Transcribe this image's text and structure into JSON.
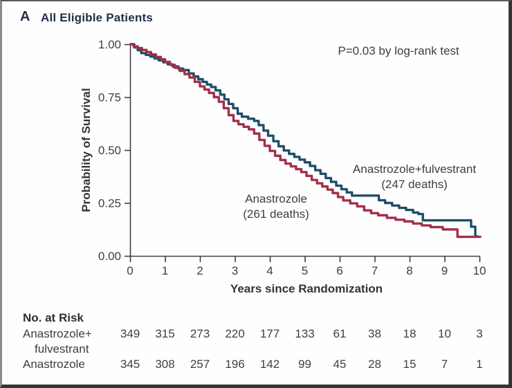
{
  "figure": {
    "panel_label": "A",
    "title": "All Eligible Patients",
    "p_value_note": "P=0.03 by log-rank test"
  },
  "chart_data": {
    "type": "line",
    "subtype": "kaplan-meier-step",
    "title": "All Eligible Patients",
    "xlabel": "Years since Randomization",
    "ylabel": "Probability of Survival",
    "xlim": [
      0,
      10
    ],
    "ylim": [
      0.0,
      1.0
    ],
    "x_ticks": [
      0,
      1,
      2,
      3,
      4,
      5,
      6,
      7,
      8,
      9,
      10
    ],
    "y_tick_values": [
      1.0,
      0.75,
      0.5,
      0.25,
      0.0
    ],
    "y_tick_labels": [
      "1.00",
      "0.75",
      "0.50",
      "0.25",
      "0.00"
    ],
    "grid": false,
    "legend_position": "inline-annotations",
    "annotation": "P=0.03 by log-rank test",
    "series": [
      {
        "name": "Anastrozole+fulvestrant",
        "deaths": 247,
        "label_lines": [
          "Anastrozole+fulvestrant",
          "(247 deaths)"
        ],
        "color": "#1d4f67",
        "points": [
          [
            0,
            1.0
          ],
          [
            0.12,
            0.985
          ],
          [
            0.22,
            0.972
          ],
          [
            0.32,
            0.958
          ],
          [
            0.45,
            0.95
          ],
          [
            0.58,
            0.942
          ],
          [
            0.7,
            0.933
          ],
          [
            0.82,
            0.924
          ],
          [
            0.95,
            0.915
          ],
          [
            1.08,
            0.905
          ],
          [
            1.22,
            0.895
          ],
          [
            1.38,
            0.885
          ],
          [
            1.52,
            0.878
          ],
          [
            1.68,
            0.862
          ],
          [
            1.82,
            0.848
          ],
          [
            1.95,
            0.835
          ],
          [
            2.08,
            0.822
          ],
          [
            2.2,
            0.81
          ],
          [
            2.32,
            0.798
          ],
          [
            2.45,
            0.782
          ],
          [
            2.58,
            0.762
          ],
          [
            2.7,
            0.74
          ],
          [
            2.82,
            0.718
          ],
          [
            2.95,
            0.698
          ],
          [
            3.08,
            0.672
          ],
          [
            3.2,
            0.658
          ],
          [
            3.38,
            0.648
          ],
          [
            3.55,
            0.638
          ],
          [
            3.68,
            0.618
          ],
          [
            3.82,
            0.592
          ],
          [
            3.95,
            0.568
          ],
          [
            4.1,
            0.542
          ],
          [
            4.25,
            0.518
          ],
          [
            4.4,
            0.498
          ],
          [
            4.55,
            0.482
          ],
          [
            4.7,
            0.468
          ],
          [
            4.85,
            0.455
          ],
          [
            5.0,
            0.442
          ],
          [
            5.15,
            0.425
          ],
          [
            5.3,
            0.405
          ],
          [
            5.45,
            0.388
          ],
          [
            5.6,
            0.368
          ],
          [
            5.75,
            0.35
          ],
          [
            5.9,
            0.332
          ],
          [
            6.05,
            0.315
          ],
          [
            6.2,
            0.3
          ],
          [
            6.35,
            0.285
          ],
          [
            7.12,
            0.263
          ],
          [
            7.3,
            0.25
          ],
          [
            7.5,
            0.238
          ],
          [
            7.7,
            0.227
          ],
          [
            7.9,
            0.217
          ],
          [
            8.1,
            0.205
          ],
          [
            8.25,
            0.198
          ],
          [
            8.38,
            0.168
          ],
          [
            9.76,
            0.138
          ],
          [
            9.88,
            0.092
          ],
          [
            9.97,
            0.092
          ]
        ]
      },
      {
        "name": "Anastrozole",
        "deaths": 261,
        "label_lines": [
          "Anastrozole",
          "(261 deaths)"
        ],
        "color": "#a23049",
        "points": [
          [
            0,
            1.0
          ],
          [
            0.1,
            0.99
          ],
          [
            0.22,
            0.982
          ],
          [
            0.34,
            0.973
          ],
          [
            0.47,
            0.963
          ],
          [
            0.6,
            0.952
          ],
          [
            0.74,
            0.94
          ],
          [
            0.88,
            0.929
          ],
          [
            1.0,
            0.917
          ],
          [
            1.14,
            0.903
          ],
          [
            1.28,
            0.889
          ],
          [
            1.42,
            0.874
          ],
          [
            1.56,
            0.859
          ],
          [
            1.7,
            0.843
          ],
          [
            1.85,
            0.822
          ],
          [
            2.0,
            0.801
          ],
          [
            2.13,
            0.786
          ],
          [
            2.26,
            0.77
          ],
          [
            2.4,
            0.75
          ],
          [
            2.54,
            0.728
          ],
          [
            2.68,
            0.698
          ],
          [
            2.82,
            0.665
          ],
          [
            2.96,
            0.638
          ],
          [
            3.1,
            0.622
          ],
          [
            3.25,
            0.61
          ],
          [
            3.4,
            0.598
          ],
          [
            3.55,
            0.578
          ],
          [
            3.7,
            0.548
          ],
          [
            3.85,
            0.52
          ],
          [
            4.0,
            0.496
          ],
          [
            4.15,
            0.473
          ],
          [
            4.3,
            0.453
          ],
          [
            4.45,
            0.436
          ],
          [
            4.6,
            0.423
          ],
          [
            4.75,
            0.41
          ],
          [
            4.9,
            0.396
          ],
          [
            5.05,
            0.378
          ],
          [
            5.2,
            0.359
          ],
          [
            5.35,
            0.343
          ],
          [
            5.5,
            0.328
          ],
          [
            5.65,
            0.313
          ],
          [
            5.8,
            0.297
          ],
          [
            5.95,
            0.278
          ],
          [
            6.1,
            0.262
          ],
          [
            6.3,
            0.248
          ],
          [
            6.5,
            0.234
          ],
          [
            6.7,
            0.215
          ],
          [
            6.9,
            0.202
          ],
          [
            7.1,
            0.192
          ],
          [
            7.35,
            0.18
          ],
          [
            7.6,
            0.171
          ],
          [
            7.85,
            0.163
          ],
          [
            8.1,
            0.153
          ],
          [
            8.35,
            0.144
          ],
          [
            8.6,
            0.136
          ],
          [
            8.95,
            0.125
          ],
          [
            9.37,
            0.09
          ],
          [
            10.05,
            0.09
          ]
        ]
      }
    ]
  },
  "risk_table": {
    "title": "No. at Risk",
    "years": [
      0,
      1,
      2,
      3,
      4,
      5,
      6,
      7,
      8,
      9,
      10
    ],
    "rows": [
      {
        "label_lines": [
          "Anastrozole+",
          "fulvestrant"
        ],
        "values": [
          349,
          315,
          273,
          220,
          177,
          133,
          61,
          38,
          18,
          10,
          3
        ]
      },
      {
        "label_lines": [
          "Anastrozole"
        ],
        "values": [
          345,
          308,
          257,
          196,
          142,
          99,
          45,
          28,
          15,
          7,
          1
        ]
      }
    ]
  },
  "colors": {
    "curve_combination": "#1d4f67",
    "curve_anastrozole": "#a23049",
    "axis": "#3e3e3e",
    "heading": "#223047",
    "background": "#fefefe"
  }
}
